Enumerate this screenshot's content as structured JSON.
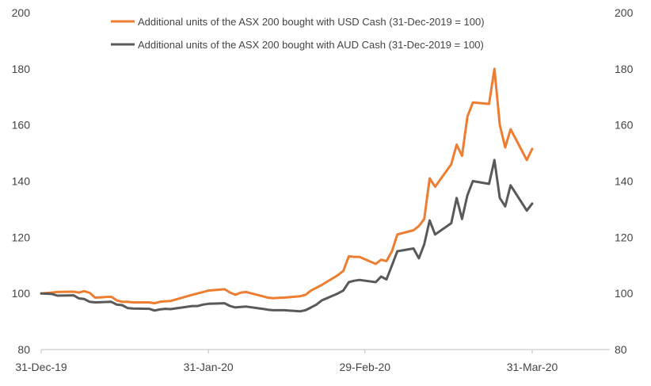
{
  "chart_data": {
    "type": "line",
    "title": "",
    "xlabel": "",
    "ylabel": "",
    "ylim": [
      80,
      200
    ],
    "yticks": [
      80,
      100,
      120,
      140,
      160,
      180,
      200
    ],
    "y2ticks": [
      80,
      100,
      120,
      140,
      160,
      180,
      200
    ],
    "x_tick_labels": [
      "31-Dec-19",
      "31-Jan-20",
      "29-Feb-20",
      "31-Mar-20"
    ],
    "grid": false,
    "legend_position": "top-center",
    "series": [
      {
        "name": "Additional units of the ASX 200 bought with USD Cash (31-Dec-2019 = 100)",
        "color": "#ED7D31",
        "x": [
          "31-Dec-19",
          "2-Jan-20",
          "3-Jan-20",
          "6-Jan-20",
          "7-Jan-20",
          "8-Jan-20",
          "9-Jan-20",
          "10-Jan-20",
          "13-Jan-20",
          "14-Jan-20",
          "15-Jan-20",
          "16-Jan-20",
          "17-Jan-20",
          "20-Jan-20",
          "21-Jan-20",
          "22-Jan-20",
          "23-Jan-20",
          "24-Jan-20",
          "28-Jan-20",
          "29-Jan-20",
          "30-Jan-20",
          "31-Jan-20",
          "3-Feb-20",
          "4-Feb-20",
          "5-Feb-20",
          "6-Feb-20",
          "7-Feb-20",
          "10-Feb-20",
          "11-Feb-20",
          "12-Feb-20",
          "13-Feb-20",
          "14-Feb-20",
          "17-Feb-20",
          "18-Feb-20",
          "19-Feb-20",
          "20-Feb-20",
          "21-Feb-20",
          "24-Feb-20",
          "25-Feb-20",
          "26-Feb-20",
          "27-Feb-20",
          "28-Feb-20",
          "2-Mar-20",
          "3-Mar-20",
          "4-Mar-20",
          "5-Mar-20",
          "6-Mar-20",
          "9-Mar-20",
          "10-Mar-20",
          "11-Mar-20",
          "12-Mar-20",
          "13-Mar-20",
          "16-Mar-20",
          "17-Mar-20",
          "18-Mar-20",
          "19-Mar-20",
          "20-Mar-20",
          "23-Mar-20",
          "24-Mar-20",
          "25-Mar-20",
          "26-Mar-20",
          "27-Mar-20",
          "30-Mar-20",
          "31-Mar-20"
        ],
        "values": [
          100,
          100.3,
          100.5,
          100.6,
          100.3,
          100.8,
          100.2,
          98.5,
          98.8,
          97.5,
          97,
          97,
          96.8,
          96.8,
          96.5,
          97,
          97.2,
          97.3,
          99.5,
          100,
          100.5,
          101,
          101.5,
          100.3,
          99.5,
          100.3,
          100.5,
          99,
          98.5,
          98.3,
          98.4,
          98.5,
          99,
          99.5,
          101,
          102,
          103,
          106.5,
          108,
          113.2,
          113,
          113,
          110.5,
          112,
          111.5,
          115,
          121,
          122.5,
          124,
          126.5,
          141,
          138,
          146,
          153,
          149,
          163,
          168,
          167.5,
          180,
          160,
          152,
          158.5,
          147.5,
          151.5
        ]
      },
      {
        "name": "Additional units of the ASX 200 bought with AUD Cash (31-Dec-2019 = 100)",
        "color": "#595959",
        "x": [
          "31-Dec-19",
          "2-Jan-20",
          "3-Jan-20",
          "6-Jan-20",
          "7-Jan-20",
          "8-Jan-20",
          "9-Jan-20",
          "10-Jan-20",
          "13-Jan-20",
          "14-Jan-20",
          "15-Jan-20",
          "16-Jan-20",
          "17-Jan-20",
          "20-Jan-20",
          "21-Jan-20",
          "22-Jan-20",
          "23-Jan-20",
          "24-Jan-20",
          "28-Jan-20",
          "29-Jan-20",
          "30-Jan-20",
          "31-Jan-20",
          "3-Feb-20",
          "4-Feb-20",
          "5-Feb-20",
          "6-Feb-20",
          "7-Feb-20",
          "10-Feb-20",
          "11-Feb-20",
          "12-Feb-20",
          "13-Feb-20",
          "14-Feb-20",
          "17-Feb-20",
          "18-Feb-20",
          "19-Feb-20",
          "20-Feb-20",
          "21-Feb-20",
          "24-Feb-20",
          "25-Feb-20",
          "26-Feb-20",
          "27-Feb-20",
          "28-Feb-20",
          "2-Mar-20",
          "3-Mar-20",
          "4-Mar-20",
          "5-Mar-20",
          "6-Mar-20",
          "9-Mar-20",
          "10-Mar-20",
          "11-Mar-20",
          "12-Mar-20",
          "13-Mar-20",
          "16-Mar-20",
          "17-Mar-20",
          "18-Mar-20",
          "19-Mar-20",
          "20-Mar-20",
          "23-Mar-20",
          "24-Mar-20",
          "25-Mar-20",
          "26-Mar-20",
          "27-Mar-20",
          "30-Mar-20",
          "31-Mar-20"
        ],
        "values": [
          100,
          99.8,
          99.2,
          99.3,
          98.2,
          98,
          97,
          96.8,
          97,
          96,
          95.8,
          94.8,
          94.6,
          94.5,
          93.9,
          94.3,
          94.5,
          94.4,
          95.5,
          95.5,
          96,
          96.3,
          96.5,
          95.5,
          95,
          95.2,
          95.3,
          94.5,
          94.2,
          94,
          94,
          94,
          93.6,
          94,
          95,
          96,
          97.5,
          100,
          101,
          104,
          104.5,
          104.8,
          104,
          106,
          105,
          110,
          115,
          116,
          112.5,
          117.5,
          126,
          121,
          125,
          134,
          126.5,
          135,
          140,
          139,
          147.5,
          134,
          131,
          138.5,
          129.5,
          132
        ]
      }
    ]
  }
}
